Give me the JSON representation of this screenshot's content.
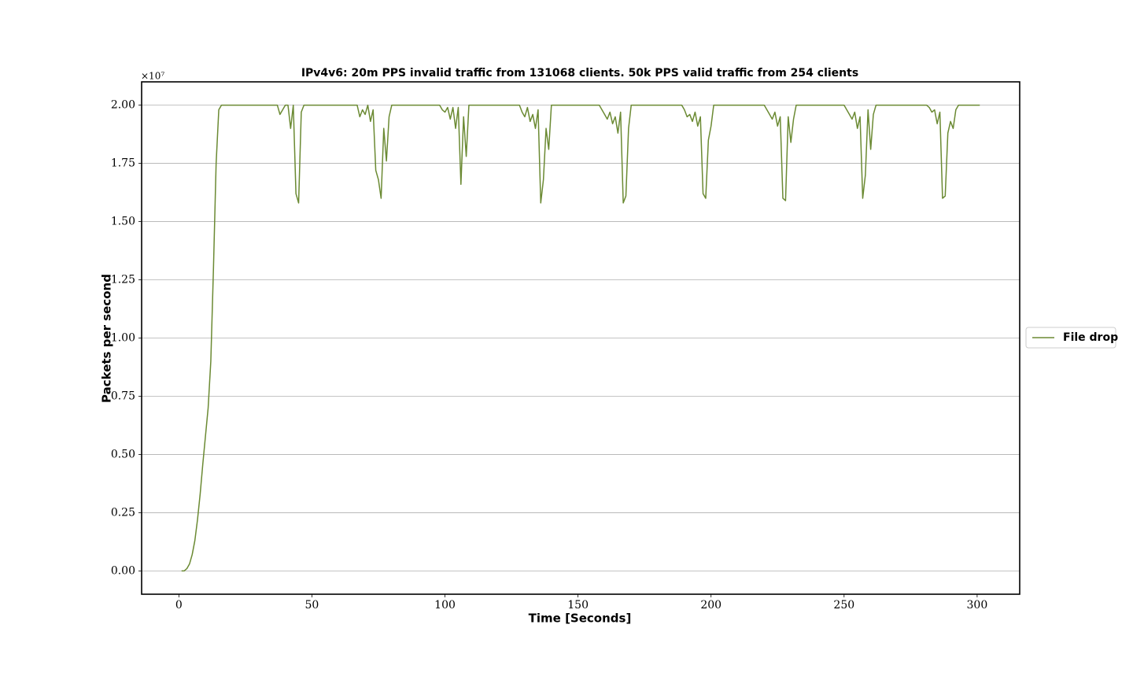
{
  "chart_data": {
    "type": "line",
    "title": "IPv4v6:  20m PPS invalid traffic from 131068 clients.  50k PPS valid traffic from 254 clients",
    "x_label": "Time [Seconds]",
    "y_label": "Packets per second",
    "y_offset_text": "×10⁷",
    "xlim": [
      -14,
      316
    ],
    "xticks": [
      0,
      50,
      100,
      150,
      200,
      250,
      300
    ],
    "ylim": [
      -0.1,
      2.1
    ],
    "yticks": [
      {
        "value": 0,
        "label": "0.00"
      },
      {
        "value": 0.25,
        "label": "0.25"
      },
      {
        "value": 0.5,
        "label": "0.50"
      },
      {
        "value": 0.75,
        "label": "0.75"
      },
      {
        "value": 1,
        "label": "1.00"
      },
      {
        "value": 1.25,
        "label": "1.25"
      },
      {
        "value": 1.5,
        "label": "1.50"
      },
      {
        "value": 1.75,
        "label": "1.75"
      },
      {
        "value": 2,
        "label": "2.00"
      }
    ],
    "grid": true,
    "legend": "right",
    "x": [
      1,
      2,
      3,
      4,
      5,
      6,
      7,
      8,
      9,
      10,
      11,
      12,
      13,
      14,
      15,
      16,
      17,
      18,
      19,
      20,
      21,
      22,
      23,
      24,
      25,
      26,
      27,
      28,
      29,
      30,
      31,
      32,
      33,
      34,
      35,
      36,
      37,
      38,
      39,
      40,
      41,
      42,
      43,
      44,
      45,
      46,
      47,
      48,
      49,
      50,
      51,
      52,
      53,
      54,
      55,
      56,
      57,
      58,
      59,
      60,
      61,
      62,
      63,
      64,
      65,
      66,
      67,
      68,
      69,
      70,
      71,
      72,
      73,
      74,
      75,
      76,
      77,
      78,
      79,
      80,
      81,
      82,
      83,
      84,
      85,
      86,
      87,
      88,
      89,
      90,
      91,
      92,
      93,
      94,
      95,
      96,
      97,
      98,
      99,
      100,
      101,
      102,
      103,
      104,
      105,
      106,
      107,
      108,
      109,
      110,
      111,
      112,
      113,
      114,
      115,
      116,
      117,
      118,
      119,
      120,
      121,
      122,
      123,
      124,
      125,
      126,
      127,
      128,
      129,
      130,
      131,
      132,
      133,
      134,
      135,
      136,
      137,
      138,
      139,
      140,
      141,
      142,
      143,
      144,
      145,
      146,
      147,
      148,
      149,
      150,
      151,
      152,
      153,
      154,
      155,
      156,
      157,
      158,
      159,
      160,
      161,
      162,
      163,
      164,
      165,
      166,
      167,
      168,
      169,
      170,
      171,
      172,
      173,
      174,
      175,
      176,
      177,
      178,
      179,
      180,
      181,
      182,
      183,
      184,
      185,
      186,
      187,
      188,
      189,
      190,
      191,
      192,
      193,
      194,
      195,
      196,
      197,
      198,
      199,
      200,
      201,
      202,
      203,
      204,
      205,
      206,
      207,
      208,
      209,
      210,
      211,
      212,
      213,
      214,
      215,
      216,
      217,
      218,
      219,
      220,
      221,
      222,
      223,
      224,
      225,
      226,
      227,
      228,
      229,
      230,
      231,
      232,
      233,
      234,
      235,
      236,
      237,
      238,
      239,
      240,
      241,
      242,
      243,
      244,
      245,
      246,
      247,
      248,
      249,
      250,
      251,
      252,
      253,
      254,
      255,
      256,
      257,
      258,
      259,
      260,
      261,
      262,
      263,
      264,
      265,
      266,
      267,
      268,
      269,
      270,
      271,
      272,
      273,
      274,
      275,
      276,
      277,
      278,
      279,
      280,
      281,
      282,
      283,
      284,
      285,
      286,
      287,
      288,
      289,
      290,
      291,
      292,
      293,
      294,
      295,
      296,
      297,
      298,
      299,
      300,
      301
    ],
    "series": [
      {
        "name": "File drop",
        "color": "#6b8a33",
        "values": [
          0,
          0,
          0.01,
          0.03,
          0.07,
          0.13,
          0.22,
          0.33,
          0.46,
          0.58,
          0.7,
          0.9,
          1.3,
          1.75,
          1.98,
          2,
          2,
          2,
          2,
          2,
          2,
          2,
          2,
          2,
          2,
          2,
          2,
          2,
          2,
          2,
          2,
          2,
          2,
          2,
          2,
          2,
          2,
          1.96,
          1.98,
          2,
          2,
          1.9,
          2,
          1.62,
          1.58,
          1.97,
          2,
          2,
          2,
          2,
          2,
          2,
          2,
          2,
          2,
          2,
          2,
          2,
          2,
          2,
          2,
          2,
          2,
          2,
          2,
          2,
          2,
          1.95,
          1.98,
          1.96,
          2,
          1.93,
          1.98,
          1.72,
          1.68,
          1.6,
          1.9,
          1.76,
          1.95,
          2,
          2,
          2,
          2,
          2,
          2,
          2,
          2,
          2,
          2,
          2,
          2,
          2,
          2,
          2,
          2,
          2,
          2,
          2,
          1.98,
          1.97,
          1.99,
          1.94,
          1.99,
          1.9,
          1.99,
          1.66,
          1.95,
          1.78,
          2,
          2,
          2,
          2,
          2,
          2,
          2,
          2,
          2,
          2,
          2,
          2,
          2,
          2,
          2,
          2,
          2,
          2,
          2,
          2,
          1.97,
          1.95,
          1.99,
          1.93,
          1.96,
          1.9,
          1.98,
          1.58,
          1.68,
          1.9,
          1.81,
          2,
          2,
          2,
          2,
          2,
          2,
          2,
          2,
          2,
          2,
          2,
          2,
          2,
          2,
          2,
          2,
          2,
          2,
          2,
          1.98,
          1.96,
          1.94,
          1.97,
          1.92,
          1.95,
          1.88,
          1.97,
          1.58,
          1.61,
          1.9,
          2,
          2,
          2,
          2,
          2,
          2,
          2,
          2,
          2,
          2,
          2,
          2,
          2,
          2,
          2,
          2,
          2,
          2,
          2,
          2,
          1.98,
          1.95,
          1.96,
          1.93,
          1.97,
          1.91,
          1.95,
          1.62,
          1.6,
          1.85,
          1.91,
          2,
          2,
          2,
          2,
          2,
          2,
          2,
          2,
          2,
          2,
          2,
          2,
          2,
          2,
          2,
          2,
          2,
          2,
          2,
          2,
          1.98,
          1.96,
          1.94,
          1.97,
          1.91,
          1.95,
          1.6,
          1.59,
          1.95,
          1.84,
          1.94,
          2,
          2,
          2,
          2,
          2,
          2,
          2,
          2,
          2,
          2,
          2,
          2,
          2,
          2,
          2,
          2,
          2,
          2,
          2,
          1.98,
          1.96,
          1.94,
          1.97,
          1.9,
          1.95,
          1.6,
          1.7,
          1.98,
          1.81,
          1.96,
          2,
          2,
          2,
          2,
          2,
          2,
          2,
          2,
          2,
          2,
          2,
          2,
          2,
          2,
          2,
          2,
          2,
          2,
          2,
          2,
          1.99,
          1.97,
          1.98,
          1.92,
          1.97,
          1.6,
          1.61,
          1.88,
          1.93,
          1.9,
          1.98,
          2,
          2,
          2,
          2,
          2,
          2,
          2,
          2,
          2
        ]
      }
    ]
  }
}
